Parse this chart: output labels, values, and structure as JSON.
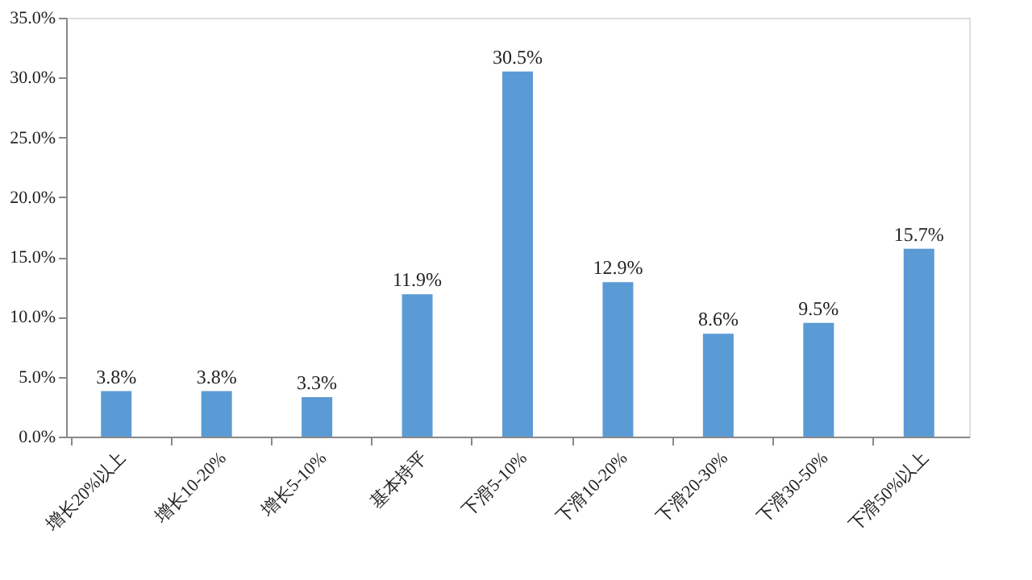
{
  "chart_data": {
    "type": "bar",
    "categories": [
      "增长20%以上",
      "增长10-20%",
      "增长5-10%",
      "基本持平",
      "下滑5-10%",
      "下滑10-20%",
      "下滑20-30%",
      "下滑30-50%",
      "下滑50%以上"
    ],
    "values": [
      3.8,
      3.8,
      3.3,
      11.9,
      30.5,
      12.9,
      8.6,
      9.5,
      15.7
    ],
    "value_labels": [
      "3.8%",
      "3.8%",
      "3.3%",
      "11.9%",
      "30.5%",
      "12.9%",
      "8.6%",
      "9.5%",
      "15.7%"
    ],
    "color": "#5b9bd5",
    "ylim": [
      0,
      35
    ],
    "yticks": [
      {
        "value": 0,
        "label": "0.0%"
      },
      {
        "value": 5,
        "label": "5.0%"
      },
      {
        "value": 10,
        "label": "10.0%"
      },
      {
        "value": 15,
        "label": "15.0%"
      },
      {
        "value": 20,
        "label": "20.0%"
      },
      {
        "value": 25,
        "label": "25.0%"
      },
      {
        "value": 30,
        "label": "30.0%"
      },
      {
        "value": 35,
        "label": "35.0%"
      }
    ],
    "grid": false
  }
}
